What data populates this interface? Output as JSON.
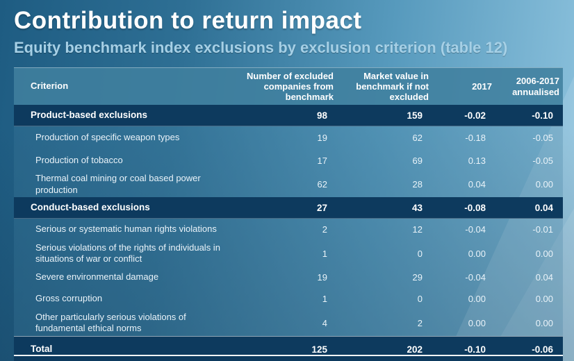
{
  "page": {
    "title": "Contribution to return impact",
    "subtitle": "Equity benchmark index exclusions by exclusion criterion (table 12)"
  },
  "colors": {
    "background_dark": "#1e5c82",
    "background_light": "#8ec3de",
    "header_fill": "#41809f",
    "section_navy": "#0d3a5e",
    "subtitle_text": "#a6d0e6",
    "body_text": "#eaf3f9"
  },
  "table": {
    "columns": [
      "Criterion",
      "Number of excluded companies from benchmark",
      "Market value in benchmark if not excluded",
      "2017",
      "2006-2017 annualised"
    ],
    "rows": [
      {
        "type": "section",
        "criterion": "Product-based exclusions",
        "values": [
          "98",
          "159",
          "-0.02",
          "-0.10"
        ]
      },
      {
        "type": "data",
        "criterion": "Production of specific weapon types",
        "values": [
          "19",
          "62",
          "-0.18",
          "-0.05"
        ]
      },
      {
        "type": "data",
        "criterion": "Production of tobacco",
        "values": [
          "17",
          "69",
          "0.13",
          "-0.05"
        ]
      },
      {
        "type": "data",
        "criterion": "Thermal coal mining or coal based power production",
        "values": [
          "62",
          "28",
          "0.04",
          "0.00"
        ]
      },
      {
        "type": "section",
        "criterion": "Conduct-based exclusions",
        "values": [
          "27",
          "43",
          "-0.08",
          "0.04"
        ]
      },
      {
        "type": "data",
        "criterion": "Serious or systematic human rights violations",
        "values": [
          "2",
          "12",
          "-0.04",
          "-0.01"
        ]
      },
      {
        "type": "data",
        "criterion": "Serious violations of the rights of individuals in situations of war or conflict",
        "values": [
          "1",
          "0",
          "0.00",
          "0.00"
        ]
      },
      {
        "type": "data",
        "criterion": "Severe environmental damage",
        "values": [
          "19",
          "29",
          "-0.04",
          "0.04"
        ]
      },
      {
        "type": "data",
        "criterion": "Gross corruption",
        "values": [
          "1",
          "0",
          "0.00",
          "0.00"
        ]
      },
      {
        "type": "data",
        "criterion": "Other particularly serious violations of fundamental ethical norms",
        "values": [
          "4",
          "2",
          "0.00",
          "0.00"
        ]
      },
      {
        "type": "total",
        "criterion": "Total",
        "values": [
          "125",
          "202",
          "-0.10",
          "-0.06"
        ]
      }
    ]
  }
}
